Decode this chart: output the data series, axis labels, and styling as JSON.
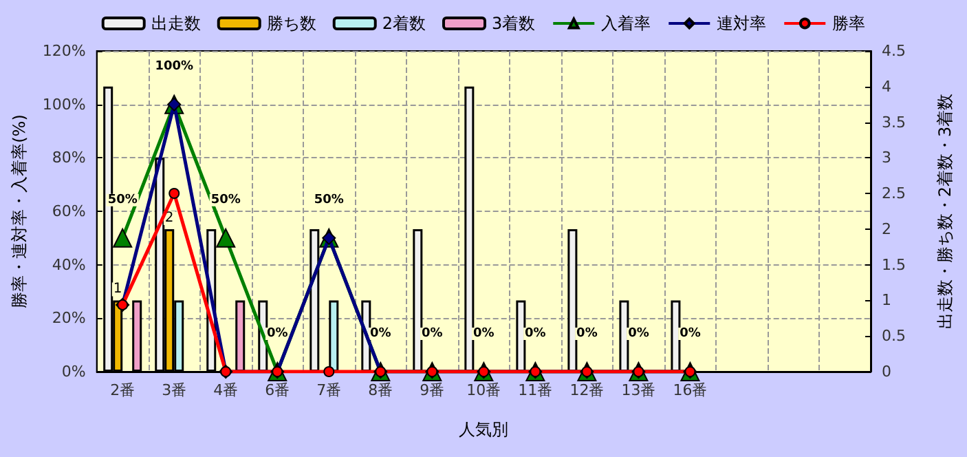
{
  "chart_data": {
    "type": "bar",
    "xlabel": "人気別",
    "ylabel": "勝率・連対率・入着率(%)",
    "y2label": "出走数・勝ち数・2着数・3着数",
    "categories": [
      "2番",
      "3番",
      "4番",
      "6番",
      "7番",
      "8番",
      "9番",
      "10番",
      "11番",
      "12番",
      "13番",
      "16番",
      null,
      null,
      null
    ],
    "series": [
      {
        "name": "出走数",
        "axis": "y2",
        "color": "#f0f0f0",
        "values": [
          4,
          3,
          2,
          1,
          2,
          1,
          2,
          4,
          1,
          2,
          1,
          1,
          null,
          null,
          null
        ]
      },
      {
        "name": "勝ち数",
        "axis": "y2",
        "color": "#f0b800",
        "values": [
          1,
          2,
          null,
          null,
          null,
          null,
          null,
          null,
          null,
          null,
          null,
          null,
          null,
          null,
          null
        ],
        "value_labels": [
          "1",
          "2",
          null,
          null,
          null,
          null,
          null,
          null,
          null,
          null,
          null,
          null,
          null,
          null,
          null
        ]
      },
      {
        "name": "2着数",
        "axis": "y2",
        "color": "#b8f0f0",
        "values": [
          null,
          1,
          null,
          null,
          1,
          null,
          null,
          null,
          null,
          null,
          null,
          null,
          null,
          null,
          null
        ]
      },
      {
        "name": "3着数",
        "axis": "y2",
        "color": "#f0a0c8",
        "values": [
          1,
          null,
          1,
          null,
          null,
          null,
          null,
          null,
          null,
          null,
          null,
          null,
          null,
          null,
          null
        ]
      },
      {
        "name": "入着率",
        "type": "line",
        "marker": "triangle",
        "color": "#008000",
        "values": [
          50,
          100,
          50,
          0,
          50,
          0,
          0,
          0,
          0,
          0,
          0,
          0,
          null,
          null,
          null
        ],
        "value_labels": [
          "50%",
          "100%",
          "50%",
          "0%",
          "50%",
          "0%",
          "0%",
          "0%",
          "0%",
          "0%",
          "0%",
          "0%",
          null,
          null,
          null
        ]
      },
      {
        "name": "連対率",
        "type": "line",
        "marker": "diamond",
        "color": "#000080",
        "values": [
          25,
          100,
          0,
          0,
          50,
          0,
          0,
          0,
          0,
          0,
          0,
          0,
          null,
          null,
          null
        ]
      },
      {
        "name": "勝率",
        "type": "line",
        "marker": "circle",
        "color": "#ff0000",
        "values": [
          25,
          66.7,
          0,
          0,
          0,
          0,
          0,
          0,
          0,
          0,
          0,
          0,
          null,
          null,
          null
        ]
      }
    ],
    "ylim": [
      0,
      120
    ],
    "yticks": [
      {
        "value": 0,
        "label": "0%"
      },
      {
        "value": 20,
        "label": "20%"
      },
      {
        "value": 40,
        "label": "40%"
      },
      {
        "value": 60,
        "label": "60%"
      },
      {
        "value": 80,
        "label": "80%"
      },
      {
        "value": 100,
        "label": "100%"
      },
      {
        "value": 120,
        "label": "120%"
      }
    ],
    "y2lim": [
      0,
      4.5
    ],
    "y2ticks": [
      0,
      0.5,
      1,
      1.5,
      2,
      2.5,
      3,
      3.5,
      4,
      4.5
    ],
    "grid": true,
    "legend": "top"
  }
}
